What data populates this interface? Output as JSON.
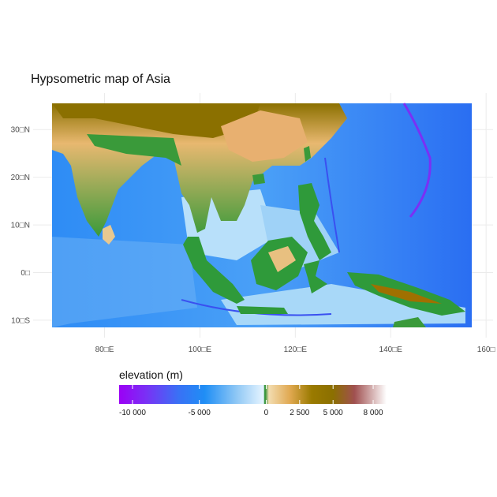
{
  "map": {
    "title": "Hypsometric map of Asia",
    "x_ticks": [
      {
        "value": 80,
        "label": "80□E"
      },
      {
        "value": 100,
        "label": "100□E"
      },
      {
        "value": 120,
        "label": "120□E"
      },
      {
        "value": 140,
        "label": "140□E"
      },
      {
        "value": 160,
        "label": "160□"
      }
    ],
    "y_ticks": [
      {
        "value": 30,
        "label": "30□N"
      },
      {
        "value": 20,
        "label": "20□N"
      },
      {
        "value": 10,
        "label": "10□N"
      },
      {
        "value": 0,
        "label": "0□"
      },
      {
        "value": -10,
        "label": "10□S"
      }
    ],
    "extent": {
      "lon": [
        69,
        157
      ],
      "lat": [
        -11.5,
        35.5
      ]
    }
  },
  "legend": {
    "title": "elevation (m)",
    "range": [
      -11000,
      9000
    ],
    "breaks": [
      {
        "value": -10000,
        "label": "-10 000"
      },
      {
        "value": -5000,
        "label": "-5 000"
      },
      {
        "value": 0,
        "label": "0"
      },
      {
        "value": 2500,
        "label": "2 500"
      },
      {
        "value": 5000,
        "label": "5 000"
      },
      {
        "value": 8000,
        "label": "8 000"
      }
    ],
    "colors": {
      "deep_sea": "#9b00f5",
      "sea": "#1f8ef5",
      "shallow_sea": "#d9f0ff",
      "lowland": "#1f8a28",
      "upland": "#f0d4a0",
      "hills": "#e0a050",
      "mountains": "#8b7000",
      "high_mountains": "#a05050",
      "peaks": "#ffffff"
    }
  }
}
